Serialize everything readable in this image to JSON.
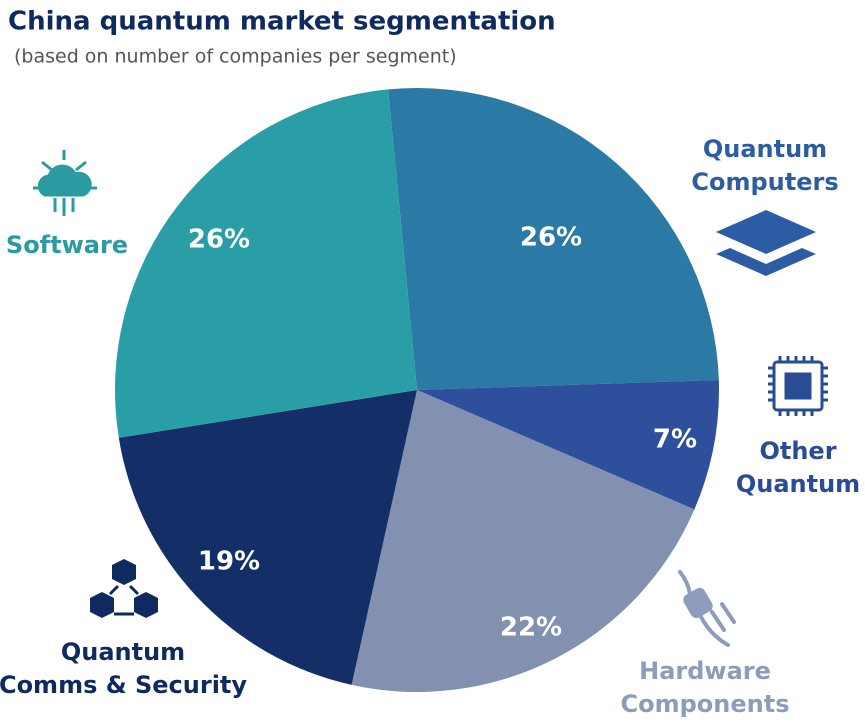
{
  "chart_data": {
    "type": "pie",
    "title": "China quantum market segmentation",
    "subtitle": "(based on number of companies per segment)",
    "categories": [
      "Quantum\nComputers",
      "Other\nQuantum",
      "Hardware\nComponents",
      "Quantum\nComms & Security",
      "Software"
    ],
    "values": [
      26,
      7,
      22,
      19,
      26
    ],
    "value_labels": [
      "26%",
      "7%",
      "22%",
      "19%",
      "26%"
    ],
    "colors": [
      "#2b7aa6",
      "#2e4f9c",
      "#8291af",
      "#142f68",
      "#2a9ea6"
    ],
    "label_colors": [
      "#2c5ca3",
      "#2a4b95",
      "#8d9cba",
      "#0f2a5e",
      "#2a9ba0"
    ]
  }
}
